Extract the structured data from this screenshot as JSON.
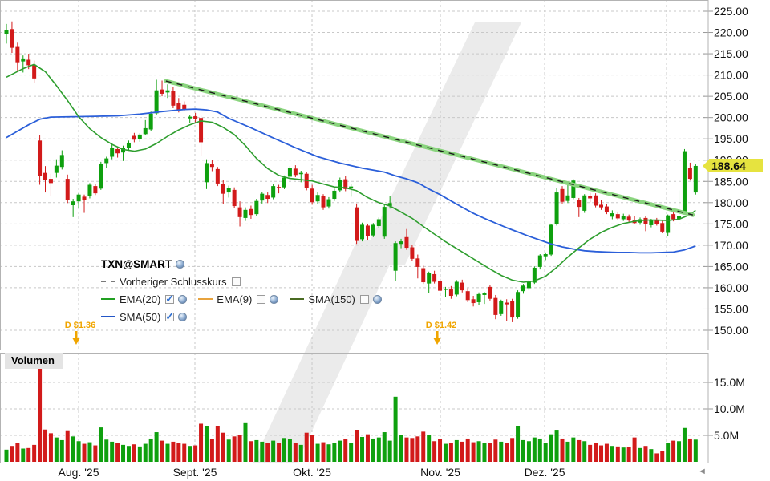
{
  "legend": {
    "title": "TXN@SMART",
    "items": [
      {
        "label": "Vorheriger Schlusskurs",
        "color": "#7a7a7a",
        "style": "dashed",
        "checked": false,
        "globe": false
      },
      {
        "label": "EMA(20)",
        "color": "#22a022",
        "style": "solid",
        "checked": true,
        "globe": true
      },
      {
        "label": "EMA(9)",
        "color": "#e8a33d",
        "style": "solid",
        "checked": false,
        "globe": true
      },
      {
        "label": "SMA(150)",
        "color": "#4a6b22",
        "style": "solid",
        "checked": false,
        "globe": true
      },
      {
        "label": "SMA(50)",
        "color": "#2356c7",
        "style": "solid",
        "checked": true,
        "globe": true
      }
    ]
  },
  "colors": {
    "up": "#0ea00e",
    "down": "#d21a1a",
    "ema20": "#2e9e2e",
    "sma50": "#2b5fd9",
    "trendline": "#8ad47e",
    "trendline_dash": "#1a1a1a",
    "dividend": "#f0a500",
    "badge_bg": "#e6e33f",
    "grid": "#c8c8c8",
    "border": "#b3b3b3",
    "axis_text": "#111111",
    "watermark": "#ebebeb"
  },
  "chart_data": {
    "type": "candlestick",
    "title": "TXN@SMART",
    "last_price": "188.64",
    "volume_label": "Volumen",
    "price_axis_ticks": [
      {
        "v": 225,
        "label": "225.00"
      },
      {
        "v": 220,
        "label": "220.00"
      },
      {
        "v": 215,
        "label": "215.00"
      },
      {
        "v": 210,
        "label": "210.00"
      },
      {
        "v": 205,
        "label": "205.00"
      },
      {
        "v": 200,
        "label": "200.00"
      },
      {
        "v": 195,
        "label": "195.00"
      },
      {
        "v": 190,
        "label": "190.00"
      },
      {
        "v": 185,
        "label": "185.00"
      },
      {
        "v": 180,
        "label": "180.00"
      },
      {
        "v": 175,
        "label": "175.00"
      },
      {
        "v": 170,
        "label": "170.00"
      },
      {
        "v": 165,
        "label": "165.00"
      },
      {
        "v": 160,
        "label": "160.00"
      },
      {
        "v": 155,
        "label": "155.00"
      },
      {
        "v": 150,
        "label": "150.00"
      }
    ],
    "volume_axis_ticks": [
      {
        "v": 15,
        "label": "15.0M"
      },
      {
        "v": 10,
        "label": "10.0M"
      },
      {
        "v": 5,
        "label": "5.0M"
      }
    ],
    "month_ticks": [
      {
        "label": "Aug. '25",
        "index": 12.99
      },
      {
        "label": "Sept. '25",
        "index": 33.91
      },
      {
        "label": "Okt. '25",
        "index": 54.98
      },
      {
        "label": "Nov. '25",
        "index": 78.07
      },
      {
        "label": "Dez. '25",
        "index": 96.83
      },
      {
        "label": "",
        "index": 118.76
      }
    ],
    "dividends": [
      {
        "label": "D $1.36",
        "index": 12.55
      },
      {
        "label": "D $1.42",
        "index": 77.5
      }
    ],
    "trendline": {
      "start_index": 28.7,
      "start_price": 208.6,
      "end_index": 123.5,
      "end_price": 177.1
    },
    "candles": [
      [
        219.6,
        222.0,
        217.4,
        220.6,
        2.3
      ],
      [
        220.8,
        222.6,
        215.2,
        216.4,
        3.0
      ],
      [
        216.6,
        217.6,
        210.8,
        213.0,
        3.6
      ],
      [
        213.2,
        214.6,
        210.6,
        213.9,
        2.5
      ],
      [
        213.6,
        215.0,
        211.4,
        212.3,
        2.6
      ],
      [
        212.4,
        213.4,
        208.2,
        209.2,
        3.2
      ],
      [
        194.6,
        195.8,
        184.2,
        186.3,
        20.5
      ],
      [
        187.0,
        188.6,
        182.4,
        185.4,
        6.1
      ],
      [
        185.6,
        186.8,
        181.6,
        184.6,
        5.4
      ],
      [
        187.0,
        190.2,
        185.9,
        188.7,
        4.6
      ],
      [
        188.4,
        192.3,
        187.8,
        191.2,
        4.1
      ],
      [
        185.6,
        186.6,
        179.9,
        180.7,
        5.8
      ],
      [
        179.4,
        180.9,
        176.6,
        180.3,
        4.8
      ],
      [
        180.3,
        182.2,
        178.8,
        181.9,
        3.9
      ],
      [
        181.4,
        181.9,
        177.6,
        180.6,
        3.4
      ],
      [
        181.6,
        184.6,
        181.0,
        184.2,
        3.7
      ],
      [
        183.9,
        184.4,
        181.8,
        182.2,
        3.1
      ],
      [
        183.3,
        189.6,
        183.0,
        189.2,
        6.5
      ],
      [
        189.3,
        190.8,
        188.2,
        190.4,
        4.2
      ],
      [
        190.8,
        194.0,
        190.2,
        192.9,
        3.8
      ],
      [
        192.6,
        193.2,
        190.6,
        191.6,
        3.5
      ],
      [
        191.8,
        193.4,
        189.8,
        192.8,
        3.2
      ],
      [
        192.9,
        194.6,
        192.2,
        194.1,
        3.0
      ],
      [
        195.7,
        196.4,
        194.2,
        194.8,
        3.3
      ],
      [
        194.9,
        196.3,
        194.3,
        196.0,
        2.9
      ],
      [
        196.1,
        199.4,
        195.8,
        197.5,
        3.4
      ],
      [
        197.2,
        201.4,
        196.8,
        200.9,
        4.4
      ],
      [
        201.0,
        208.9,
        200.6,
        206.4,
        5.6
      ],
      [
        206.6,
        208.7,
        205.0,
        205.6,
        4.0
      ],
      [
        205.9,
        207.8,
        204.6,
        206.4,
        3.4
      ],
      [
        206.2,
        207.2,
        202.2,
        202.8,
        3.8
      ],
      [
        203.4,
        204.6,
        201.2,
        201.6,
        3.6
      ],
      [
        203.0,
        203.8,
        201.6,
        202.0,
        3.4
      ],
      [
        199.8,
        200.6,
        198.8,
        200.2,
        3.0
      ],
      [
        200.3,
        201.1,
        198.9,
        199.6,
        3.1
      ],
      [
        199.9,
        200.4,
        190.9,
        194.2,
        7.2
      ],
      [
        184.8,
        190.2,
        183.2,
        189.3,
        6.8
      ],
      [
        189.0,
        190.0,
        187.4,
        188.4,
        4.3
      ],
      [
        187.9,
        188.4,
        183.9,
        184.5,
        6.7
      ],
      [
        184.3,
        185.3,
        179.6,
        182.1,
        5.5
      ],
      [
        182.4,
        184.0,
        181.2,
        183.4,
        4.2
      ],
      [
        183.0,
        183.6,
        178.7,
        179.2,
        4.8
      ],
      [
        178.9,
        180.3,
        174.4,
        176.6,
        5.0
      ],
      [
        176.4,
        178.9,
        175.7,
        178.3,
        7.3
      ],
      [
        178.5,
        179.3,
        176.2,
        177.1,
        3.9
      ],
      [
        177.3,
        180.9,
        176.8,
        180.4,
        4.1
      ],
      [
        180.5,
        182.6,
        179.8,
        182.1,
        3.8
      ],
      [
        181.8,
        182.4,
        179.9,
        180.9,
        3.5
      ],
      [
        181.2,
        184.4,
        180.8,
        183.9,
        4.0
      ],
      [
        183.7,
        184.2,
        182.2,
        183.4,
        3.5
      ],
      [
        183.6,
        186.4,
        183.2,
        185.9,
        4.5
      ],
      [
        186.1,
        188.6,
        185.4,
        188.1,
        4.3
      ],
      [
        188.0,
        188.8,
        186.0,
        186.5,
        3.6
      ],
      [
        186.7,
        187.5,
        184.8,
        187.0,
        3.2
      ],
      [
        186.8,
        187.2,
        182.9,
        183.5,
        5.5
      ],
      [
        183.3,
        184.2,
        179.5,
        180.1,
        5.0
      ],
      [
        180.3,
        182.4,
        179.7,
        181.8,
        3.4
      ],
      [
        181.5,
        182.0,
        178.3,
        178.9,
        3.7
      ],
      [
        179.1,
        181.3,
        178.6,
        180.8,
        3.3
      ],
      [
        180.9,
        183.3,
        180.4,
        182.8,
        3.5
      ],
      [
        182.9,
        185.9,
        182.4,
        185.3,
        4.0
      ],
      [
        185.5,
        186.3,
        182.7,
        183.2,
        4.3
      ],
      [
        183.4,
        184.4,
        181.4,
        183.8,
        3.6
      ],
      [
        178.9,
        179.8,
        170.3,
        171.0,
        6.0
      ],
      [
        171.4,
        175.3,
        170.9,
        174.8,
        4.7
      ],
      [
        174.6,
        174.9,
        171.1,
        172.1,
        5.2
      ],
      [
        172.3,
        175.2,
        171.9,
        174.8,
        4.4
      ],
      [
        174.5,
        176.5,
        174.0,
        176.1,
        4.6
      ],
      [
        172.0,
        179.5,
        171.5,
        179.0,
        5.6
      ],
      [
        179.2,
        181.5,
        178.6,
        179.9,
        4.0
      ],
      [
        164.0,
        170.9,
        161.6,
        170.5,
        12.3
      ],
      [
        170.3,
        171.5,
        169.3,
        170.9,
        5.0
      ],
      [
        171.9,
        173.8,
        168.9,
        169.4,
        4.6
      ],
      [
        169.5,
        170.1,
        166.3,
        166.8,
        4.5
      ],
      [
        166.9,
        167.8,
        162.2,
        164.9,
        4.8
      ],
      [
        164.6,
        165.2,
        160.9,
        161.3,
        5.7
      ],
      [
        161.0,
        163.8,
        158.7,
        163.4,
        5.1
      ],
      [
        163.2,
        164.0,
        161.0,
        161.4,
        3.9
      ],
      [
        161.6,
        162.3,
        158.9,
        159.3,
        4.3
      ],
      [
        159.5,
        160.2,
        157.9,
        159.8,
        3.4
      ],
      [
        159.6,
        160.4,
        157.4,
        158.1,
        3.6
      ],
      [
        158.4,
        161.8,
        158.0,
        161.4,
        4.1
      ],
      [
        161.2,
        161.9,
        158.9,
        159.4,
        3.8
      ],
      [
        159.2,
        159.9,
        156.6,
        157.1,
        4.4
      ],
      [
        157.3,
        158.1,
        155.6,
        156.4,
        3.7
      ],
      [
        156.6,
        158.9,
        156.0,
        158.5,
        3.9
      ],
      [
        158.3,
        159.0,
        156.2,
        158.8,
        3.6
      ],
      [
        160.2,
        160.7,
        157.0,
        157.4,
        3.5
      ],
      [
        157.6,
        158.3,
        152.6,
        153.6,
        4.2
      ],
      [
        153.8,
        157.2,
        153.4,
        156.8,
        3.8
      ],
      [
        156.5,
        157.3,
        152.2,
        156.1,
        3.6
      ],
      [
        156.9,
        157.4,
        151.9,
        153.0,
        4.5
      ],
      [
        153.1,
        159.4,
        152.7,
        159.0,
        6.7
      ],
      [
        159.2,
        160.9,
        158.6,
        160.5,
        4.1
      ],
      [
        159.9,
        161.8,
        159.4,
        161.5,
        3.9
      ],
      [
        161.2,
        165.0,
        160.9,
        164.7,
        4.6
      ],
      [
        164.9,
        167.9,
        164.3,
        167.6,
        4.4
      ],
      [
        167.4,
        168.3,
        166.5,
        167.9,
        3.6
      ],
      [
        167.8,
        175.0,
        167.5,
        174.8,
        5.2
      ],
      [
        174.9,
        183.4,
        174.6,
        182.4,
        5.9
      ],
      [
        183.2,
        183.9,
        179.8,
        180.2,
        4.4
      ],
      [
        180.4,
        184.2,
        179.9,
        181.7,
        3.8
      ],
      [
        181.1,
        185.5,
        180.8,
        185.2,
        4.6
      ],
      [
        180.6,
        181.1,
        176.6,
        179.0,
        4.1
      ],
      [
        178.1,
        182.0,
        177.6,
        181.7,
        3.9
      ],
      [
        181.5,
        182.3,
        180.1,
        181.0,
        3.2
      ],
      [
        181.7,
        182.2,
        178.9,
        179.3,
        3.5
      ],
      [
        179.5,
        180.6,
        178.3,
        178.9,
        3.1
      ],
      [
        179.1,
        179.6,
        177.3,
        177.7,
        3.4
      ],
      [
        176.7,
        178.2,
        176.1,
        177.5,
        3.0
      ],
      [
        177.3,
        177.9,
        175.9,
        176.3,
        2.9
      ],
      [
        176.1,
        177.4,
        175.7,
        176.9,
        2.7
      ],
      [
        176.7,
        177.2,
        175.4,
        175.8,
        2.8
      ],
      [
        176.0,
        176.8,
        174.9,
        175.2,
        4.6
      ],
      [
        175.3,
        176.5,
        174.8,
        176.1,
        2.6
      ],
      [
        176.4,
        176.9,
        173.3,
        174.9,
        3.0
      ],
      [
        174.7,
        176.2,
        174.2,
        175.8,
        2.4
      ],
      [
        175.9,
        176.4,
        174.6,
        175.0,
        1.6
      ],
      [
        175.2,
        175.7,
        172.8,
        173.2,
        2.1
      ],
      [
        172.9,
        177.2,
        172.2,
        177.0,
        3.6
      ],
      [
        177.3,
        178.0,
        175.6,
        176.1,
        4.0
      ],
      [
        176.2,
        182.9,
        175.8,
        176.9,
        3.9
      ],
      [
        177.6,
        192.6,
        177.2,
        192.1,
        6.4
      ],
      [
        188.1,
        189.4,
        185.2,
        185.6,
        4.4
      ],
      [
        182.4,
        189.0,
        181.9,
        188.64,
        4.2
      ]
    ],
    "ema20": [
      [
        0,
        209.5
      ],
      [
        3,
        211.5
      ],
      [
        5,
        212.5
      ],
      [
        7,
        210.8
      ],
      [
        9,
        207.5
      ],
      [
        11,
        204.0
      ],
      [
        13,
        200.2
      ],
      [
        15,
        197.4
      ],
      [
        17,
        195.3
      ],
      [
        19,
        193.7
      ],
      [
        21,
        192.5
      ],
      [
        23,
        192.1
      ],
      [
        25,
        192.6
      ],
      [
        27,
        193.9
      ],
      [
        29,
        195.6
      ],
      [
        31,
        197.1
      ],
      [
        33,
        198.3
      ],
      [
        35,
        199.2
      ],
      [
        37,
        198.9
      ],
      [
        39,
        197.7
      ],
      [
        41,
        196.0
      ],
      [
        43,
        193.4
      ],
      [
        45,
        190.4
      ],
      [
        47,
        188.0
      ],
      [
        49,
        186.4
      ],
      [
        51,
        185.7
      ],
      [
        53,
        185.4
      ],
      [
        55,
        185.1
      ],
      [
        57,
        184.4
      ],
      [
        59,
        183.7
      ],
      [
        61,
        183.5
      ],
      [
        63,
        182.8
      ],
      [
        65,
        181.2
      ],
      [
        67,
        180.0
      ],
      [
        69,
        179.2
      ],
      [
        71,
        177.8
      ],
      [
        73,
        176.3
      ],
      [
        75,
        174.4
      ],
      [
        77,
        172.6
      ],
      [
        79,
        170.8
      ],
      [
        81,
        169.2
      ],
      [
        83,
        167.6
      ],
      [
        85,
        166.0
      ],
      [
        87,
        164.4
      ],
      [
        89,
        162.9
      ],
      [
        91,
        161.8
      ],
      [
        93,
        161.3
      ],
      [
        95,
        161.6
      ],
      [
        97,
        162.7
      ],
      [
        99,
        164.8
      ],
      [
        101,
        167.2
      ],
      [
        103,
        169.4
      ],
      [
        105,
        171.4
      ],
      [
        107,
        173.0
      ],
      [
        109,
        174.2
      ],
      [
        111,
        175.1
      ],
      [
        113,
        175.6
      ],
      [
        115,
        175.9
      ],
      [
        117,
        175.9
      ],
      [
        119,
        175.8
      ],
      [
        121,
        176.1
      ],
      [
        123,
        177.2
      ],
      [
        124,
        178.2
      ]
    ],
    "sma50": [
      [
        0,
        195.3
      ],
      [
        2,
        196.8
      ],
      [
        4,
        198.3
      ],
      [
        6,
        199.6
      ],
      [
        8,
        200.1
      ],
      [
        12,
        200.2
      ],
      [
        16,
        200.3
      ],
      [
        20,
        200.4
      ],
      [
        24,
        200.8
      ],
      [
        28,
        201.4
      ],
      [
        32,
        201.9
      ],
      [
        34,
        202.0
      ],
      [
        36,
        201.8
      ],
      [
        38,
        201.3
      ],
      [
        40,
        199.8
      ],
      [
        44,
        197.6
      ],
      [
        48,
        195.2
      ],
      [
        52,
        192.9
      ],
      [
        56,
        190.8
      ],
      [
        60,
        189.3
      ],
      [
        64,
        188.1
      ],
      [
        68,
        187.2
      ],
      [
        70,
        186.3
      ],
      [
        72,
        185.6
      ],
      [
        74,
        184.7
      ],
      [
        76,
        183.2
      ],
      [
        78,
        181.9
      ],
      [
        80,
        180.4
      ],
      [
        82,
        178.9
      ],
      [
        84,
        177.5
      ],
      [
        86,
        176.3
      ],
      [
        88,
        175.2
      ],
      [
        90,
        174.1
      ],
      [
        92,
        173.1
      ],
      [
        94,
        172.1
      ],
      [
        96,
        171.2
      ],
      [
        98,
        170.3
      ],
      [
        100,
        169.6
      ],
      [
        102,
        169.1
      ],
      [
        104,
        168.7
      ],
      [
        106,
        168.5
      ],
      [
        108,
        168.4
      ],
      [
        110,
        168.3
      ],
      [
        112,
        168.3
      ],
      [
        114,
        168.2
      ],
      [
        116,
        168.2
      ],
      [
        118,
        168.3
      ],
      [
        120,
        168.4
      ],
      [
        122,
        168.9
      ],
      [
        124,
        169.8
      ]
    ]
  }
}
